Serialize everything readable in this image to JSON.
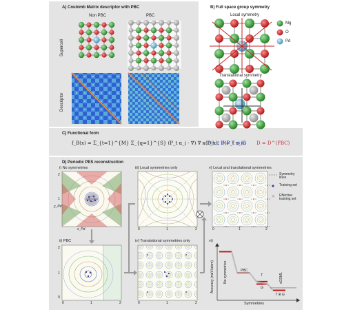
{
  "panel_a": {
    "title": "A)   Coulomb Matrix descriptor with PBC",
    "col_nonpbc": "Non PBC",
    "col_pbc": "PBC",
    "row_supercell": "Supercell",
    "row_descriptor": "Descriptor"
  },
  "panel_b": {
    "title": "B)   Full space group symmetry",
    "local": "Local symmetry",
    "translational": "Translational symmetry",
    "legend": [
      {
        "label": "Mg",
        "color": "#2e9a2e"
      },
      {
        "label": "O",
        "color": "#d42222"
      },
      {
        "label": "Pd",
        "color": "#6ab8d8"
      }
    ]
  },
  "panel_c": {
    "title": "C)   Functional form",
    "eq_main": "f_B(x) = Σ_{t=1}^{M} Σ_{q=1}^{S} (P_t α_i · ∇) ∇ κ(D(x), D(P_t x_i))",
    "eq_p": "P_t ∈ F = T ⊗ G",
    "eq_d": "D = D^(PBC)"
  },
  "panel_d": {
    "title": "D)   Periodic PES reconstruction",
    "sub_i": "i)  No symmetries",
    "sub_ii": "ii)  PBC",
    "sub_iii": "iii)  Local symmetries only",
    "sub_iv": "iv)  Translational symmetries only",
    "sub_v": "v)  Local and translational symmetries",
    "sub_vi": "vi)",
    "axis_x": "x_Pd",
    "axis_y": "y_Pd",
    "ticks": [
      "0",
      "1",
      "2"
    ],
    "legend": [
      "Symmetry lines",
      "Training set",
      "Effective training set"
    ],
    "otimes": "⊗",
    "bar_labels": [
      "No symmetries",
      "PBC",
      "T",
      "G",
      "T ⊗ G",
      "sGDML"
    ],
    "ylabel": "Accuracy (meV/atom)",
    "xlabel": "Symmetries"
  },
  "chart_data": {
    "type": "bar",
    "categories": [
      "No symmetries",
      "PBC",
      "T",
      "G",
      "T ⊗ G"
    ],
    "values": [
      3.9,
      2.2,
      1.5,
      1.3,
      0.8
    ],
    "reference": {
      "name": "sGDML",
      "value": 1.0
    },
    "xlabel": "Symmetries",
    "ylabel": "Accuracy (meV/atom)"
  }
}
